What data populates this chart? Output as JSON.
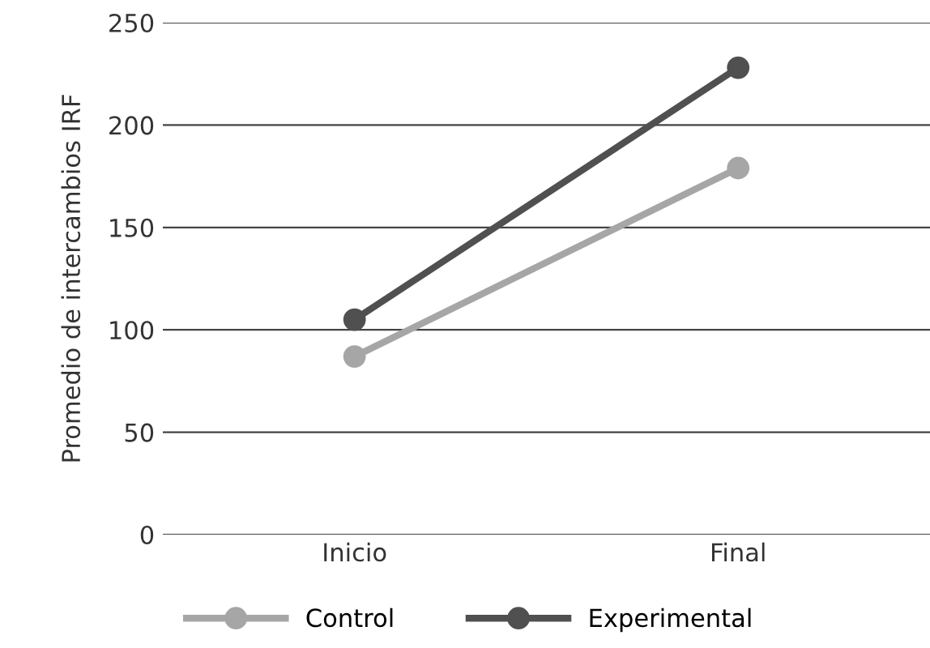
{
  "chart_data": {
    "type": "line",
    "ylabel": "Promedio de intercambios IRF",
    "categories": [
      "Inicio",
      "Final"
    ],
    "series": [
      {
        "name": "Control",
        "color": "#a6a6a6",
        "values": [
          87,
          179
        ]
      },
      {
        "name": "Experimental",
        "color": "#505050",
        "values": [
          105,
          228
        ]
      }
    ],
    "ylim": [
      0,
      250
    ],
    "yticks": [
      0,
      50,
      100,
      150,
      200,
      250
    ],
    "grid": "y",
    "legend": "bottom",
    "marker": "circle",
    "line_style": "solid"
  }
}
